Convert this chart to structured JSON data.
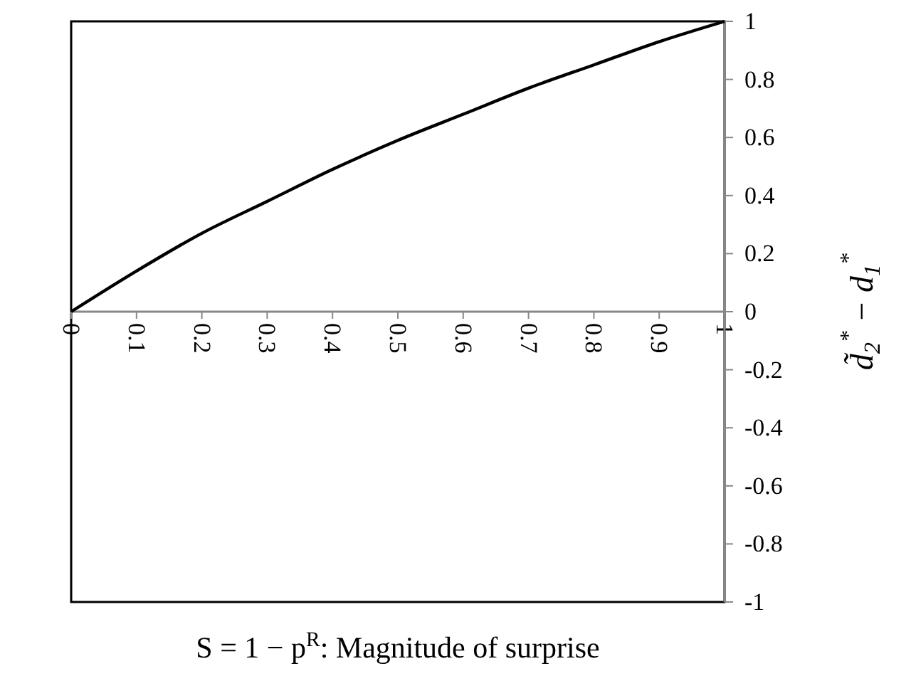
{
  "chart_data": {
    "type": "line",
    "xlabel": "S = 1 − p$^{R}$: Magnitude of surprise",
    "ylabel": "d̃$_{2}$$^{*}$ − d$_{1}$$^{*}$",
    "x": [
      0,
      0.1,
      0.2,
      0.3,
      0.4,
      0.5,
      0.6,
      0.7,
      0.8,
      0.9,
      1
    ],
    "series": [
      {
        "color": "#000000",
        "values": [
          0,
          0.14,
          0.27,
          0.38,
          0.49,
          0.59,
          0.68,
          0.77,
          0.85,
          0.93,
          1
        ]
      }
    ],
    "xlim": [
      0,
      1
    ],
    "xticks": [
      0,
      0.1,
      0.2,
      0.3,
      0.4,
      0.5,
      0.6,
      0.7,
      0.8,
      0.9,
      1
    ],
    "ylim": [
      -1,
      1
    ],
    "yticks": [
      -1,
      -0.8,
      -0.6,
      -0.4,
      -0.2,
      0,
      0.2,
      0.4,
      0.6,
      0.8,
      1
    ],
    "grid": false,
    "marker": "none",
    "line_style": "solid"
  }
}
